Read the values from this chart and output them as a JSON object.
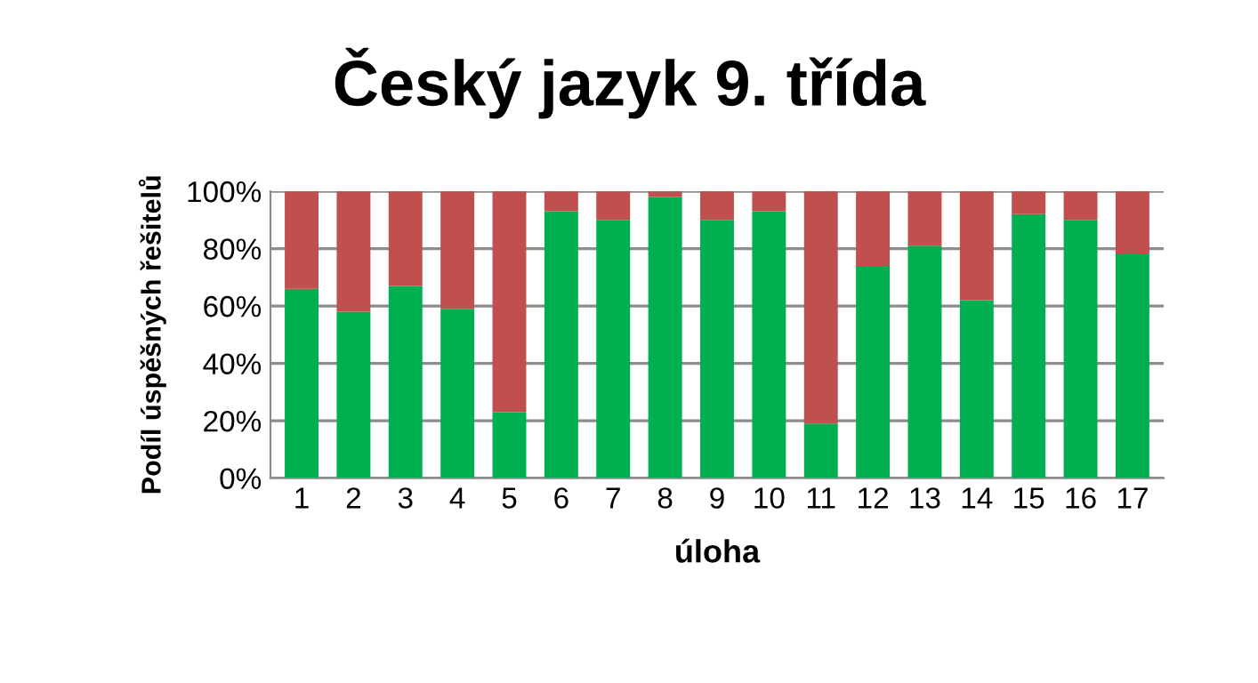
{
  "chart_data": {
    "type": "bar",
    "stacked": true,
    "title": "Český jazyk 9. třída",
    "xlabel": "úloha",
    "ylabel": "Podíl úspěšných řešitelů",
    "categories": [
      "1",
      "2",
      "3",
      "4",
      "5",
      "6",
      "7",
      "8",
      "9",
      "10",
      "11",
      "12",
      "13",
      "14",
      "15",
      "16",
      "17"
    ],
    "series": [
      {
        "color": "#00b050",
        "values": [
          66,
          58,
          67,
          59,
          23,
          93,
          90,
          98,
          90,
          93,
          19,
          74,
          81,
          62,
          92,
          90,
          78
        ]
      },
      {
        "color": "#c0504d",
        "values": [
          34,
          42,
          33,
          41,
          77,
          7,
          10,
          2,
          10,
          7,
          81,
          26,
          19,
          38,
          8,
          10,
          22
        ]
      }
    ],
    "ylim": [
      0,
      100
    ],
    "yticks": [
      {
        "value": 0,
        "label": "0%"
      },
      {
        "value": 20,
        "label": "20%"
      },
      {
        "value": 40,
        "label": "40%"
      },
      {
        "value": 60,
        "label": "60%"
      },
      {
        "value": 80,
        "label": "80%"
      },
      {
        "value": 100,
        "label": "100%"
      }
    ],
    "grid": "y",
    "legend": false
  }
}
